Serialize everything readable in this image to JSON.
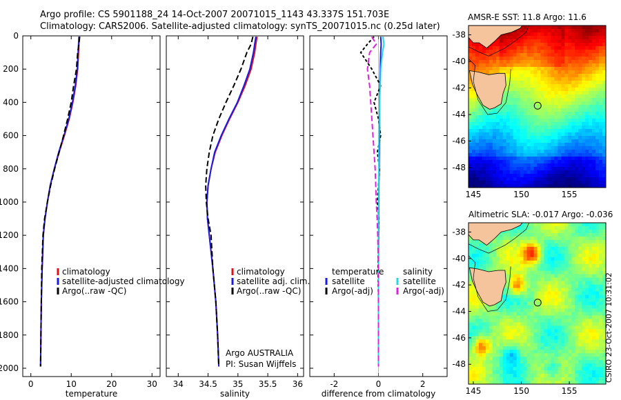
{
  "header": {
    "line1": "Argo profile: CS 5901188_24 14-Oct-2007 20071015_1143 43.337S 151.703E",
    "line2": "Climatology: CARS2006. Satellite-adjusted climatology: synTS_20071015.nc (0.25d later)"
  },
  "colors": {
    "climatology": "#dd1111",
    "satellite": "#1a1ae6",
    "argo": "#000000",
    "satellite_salinity": "#22d8e6",
    "argo_adj_salinity": "#e020e0"
  },
  "chart_data": [
    {
      "type": "line",
      "xlabel": "temperature",
      "ylabel": "",
      "xlim": [
        -2,
        32
      ],
      "ylim": [
        2050,
        0
      ],
      "xticks": [
        0,
        10,
        20,
        30
      ],
      "yticks": [
        0,
        200,
        400,
        600,
        800,
        1000,
        1200,
        1400,
        1600,
        1800,
        2000
      ],
      "legend": {
        "placement": "lower-right",
        "items": [
          "climatology",
          "satellite-adjusted climatology",
          "Argo(..raw -QC)"
        ]
      },
      "series": [
        {
          "name": "climatology",
          "x": [
            12.0,
            11.9,
            11.8,
            11.6,
            11.1,
            10.4,
            9.5,
            8.3,
            7.0,
            5.8,
            4.8,
            4.1,
            3.5,
            3.1,
            2.8,
            2.6,
            2.5,
            2.4
          ],
          "y": [
            5,
            50,
            100,
            200,
            300,
            400,
            500,
            600,
            700,
            800,
            900,
            1000,
            1100,
            1200,
            1400,
            1600,
            1800,
            1990
          ]
        },
        {
          "name": "satellite-adjusted climatology",
          "x": [
            11.9,
            11.8,
            11.7,
            11.5,
            11.0,
            10.3,
            9.4,
            8.2,
            6.9,
            5.8,
            4.8,
            4.1,
            3.5,
            3.1,
            2.8,
            2.6,
            2.5,
            2.4
          ],
          "y": [
            5,
            50,
            100,
            200,
            300,
            400,
            500,
            600,
            700,
            800,
            900,
            1000,
            1100,
            1200,
            1400,
            1600,
            1800,
            1990
          ]
        },
        {
          "name": "Argo(..raw -QC)",
          "x": [
            12.1,
            11.9,
            11.6,
            11.3,
            10.6,
            10.0,
            9.1,
            8.1,
            7.0,
            5.9,
            4.9,
            4.1,
            3.4,
            3.0,
            2.7,
            2.6,
            2.5,
            2.4
          ],
          "y": [
            5,
            50,
            100,
            200,
            300,
            400,
            500,
            600,
            700,
            800,
            900,
            1000,
            1100,
            1200,
            1400,
            1600,
            1800,
            1990
          ]
        }
      ]
    },
    {
      "type": "line",
      "xlabel": "salinity",
      "ylabel": "",
      "xlim": [
        33.8,
        36.1
      ],
      "ylim": [
        2050,
        0
      ],
      "xticks": [
        34,
        34.5,
        35,
        35.5,
        36
      ],
      "xticklabels": [
        "34",
        "34.5",
        "35",
        "35.5",
        "36"
      ],
      "legend": {
        "placement": "lower-right",
        "items": [
          "climatology",
          "satellite adj. clim.",
          "Argo(..raw -QC)"
        ]
      },
      "annotations": [
        "Argo AUSTRALIA",
        "PI: Susan Wijffels"
      ],
      "series": [
        {
          "name": "climatology",
          "x": [
            35.32,
            35.3,
            35.28,
            35.22,
            35.12,
            35.0,
            34.86,
            34.73,
            34.62,
            34.55,
            34.5,
            34.48,
            34.49,
            34.52,
            34.58,
            34.63,
            34.66,
            34.68
          ],
          "y": [
            5,
            50,
            100,
            200,
            300,
            400,
            500,
            600,
            700,
            800,
            900,
            1000,
            1100,
            1200,
            1400,
            1600,
            1800,
            1990
          ]
        },
        {
          "name": "satellite adj. clim.",
          "x": [
            35.3,
            35.28,
            35.26,
            35.2,
            35.1,
            34.99,
            34.85,
            34.72,
            34.61,
            34.55,
            34.5,
            34.48,
            34.49,
            34.52,
            34.58,
            34.63,
            34.66,
            34.68
          ],
          "y": [
            5,
            50,
            100,
            200,
            300,
            400,
            500,
            600,
            700,
            800,
            900,
            1000,
            1100,
            1200,
            1400,
            1600,
            1800,
            1990
          ]
        },
        {
          "name": "Argo(..raw -QC)",
          "x": [
            35.25,
            35.22,
            35.15,
            35.05,
            34.93,
            34.8,
            34.68,
            34.58,
            34.52,
            34.48,
            34.46,
            34.47,
            34.5,
            34.55,
            34.58,
            34.63,
            34.66,
            34.68
          ],
          "y": [
            5,
            50,
            100,
            200,
            300,
            400,
            500,
            600,
            700,
            800,
            900,
            1000,
            1100,
            1200,
            1400,
            1600,
            1800,
            1990
          ]
        }
      ]
    },
    {
      "type": "line",
      "xlabel": "difference from climatology",
      "ylabel": "",
      "xlim": [
        -3.1,
        3.1
      ],
      "ylim": [
        2050,
        0
      ],
      "xticks": [
        -2,
        0,
        2
      ],
      "legend": {
        "placement": "lower",
        "temperature_title": "temperature",
        "salinity_title": "salinity",
        "items": [
          "satellite",
          "Argo(-adj)",
          "satellite",
          "Argo(-adj)"
        ]
      },
      "series": [
        {
          "name": "temperature satellite",
          "x": [
            0.1,
            0.12,
            0.1,
            0.08,
            0.06,
            0.05,
            0.05,
            0.05,
            0.04,
            0.03,
            0.02,
            0.02,
            0.01,
            0.01,
            0.0,
            0.0,
            0.0,
            0.0
          ],
          "y": [
            5,
            50,
            100,
            200,
            300,
            400,
            500,
            600,
            700,
            800,
            900,
            1000,
            1100,
            1200,
            1400,
            1600,
            1800,
            1990
          ]
        },
        {
          "name": "temperature Argo(-adj)",
          "x": [
            -0.2,
            -0.5,
            -0.8,
            -0.3,
            0.1,
            -0.2,
            0.0,
            0.1,
            -0.05,
            0.05,
            0.0,
            -0.05,
            0.02,
            0.0,
            -0.02,
            0.0,
            0.0,
            0.0
          ],
          "y": [
            5,
            50,
            100,
            200,
            300,
            400,
            500,
            600,
            700,
            800,
            900,
            1000,
            1100,
            1200,
            1400,
            1600,
            1800,
            1990
          ]
        },
        {
          "name": "salinity satellite",
          "x": [
            0.2,
            0.25,
            0.18,
            0.1,
            0.08,
            0.05,
            0.04,
            0.03,
            0.02,
            0.02,
            0.01,
            0.01,
            0.0,
            0.0,
            0.0,
            0.0,
            0.0,
            0.0
          ],
          "y": [
            5,
            50,
            100,
            200,
            300,
            400,
            500,
            600,
            700,
            800,
            900,
            1000,
            1100,
            1200,
            1400,
            1600,
            1800,
            1990
          ]
        },
        {
          "name": "salinity Argo(-adj)",
          "x": [
            -0.3,
            -0.1,
            -0.4,
            -0.5,
            -0.4,
            -0.35,
            -0.3,
            -0.25,
            -0.2,
            -0.15,
            -0.12,
            -0.1,
            -0.06,
            -0.03,
            0.0,
            0.0,
            0.0,
            0.0
          ],
          "y": [
            5,
            50,
            100,
            200,
            300,
            400,
            500,
            600,
            700,
            800,
            900,
            1000,
            1100,
            1200,
            1400,
            1600,
            1800,
            1990
          ]
        }
      ]
    },
    {
      "type": "heatmap",
      "title": "AMSR-E SST: 11.8 Argo: 11.6",
      "xlim": [
        144.5,
        158.8
      ],
      "ylim": [
        -49.5,
        -37.3
      ],
      "xticks": [
        145,
        150,
        155
      ],
      "yticks": [
        -38,
        -40,
        -42,
        -44,
        -46,
        -48
      ],
      "marker": {
        "lon": 151.703,
        "lat": -43.337
      }
    },
    {
      "type": "heatmap",
      "title": "Altimetric SLA: -0.017 Argo: -0.036",
      "xlim": [
        144.5,
        158.8
      ],
      "ylim": [
        -49.5,
        -37.3
      ],
      "xticks": [
        145,
        150,
        155
      ],
      "yticks": [
        -38,
        -40,
        -42,
        -44,
        -46,
        -48
      ],
      "marker": {
        "lon": 151.703,
        "lat": -43.337
      }
    }
  ],
  "credit": "CSIRO 23-Oct-2007 10:31:02"
}
